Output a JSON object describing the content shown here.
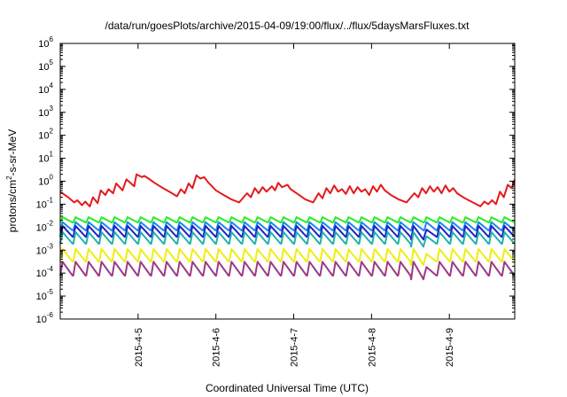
{
  "chart_data": {
    "type": "line",
    "title": "/data/run/goesPlots/archive/2015-04-09/19:00/flux/../flux/5daysMarsFluxes.txt",
    "xlabel": "Coordinated Universal Time (UTC)",
    "ylabel": "protons/cm²-s-sr-MeV",
    "ylabel_parts": [
      "protons/cm",
      "2",
      "-s-sr-MeV"
    ],
    "yscale": "log",
    "ylim_exp": [
      -6,
      6
    ],
    "xlim_days": [
      4.0,
      9.84
    ],
    "x_ticks": [
      {
        "label": "2015-4-5",
        "day": 5
      },
      {
        "label": "2015-4-6",
        "day": 6
      },
      {
        "label": "2015-4-7",
        "day": 7
      },
      {
        "label": "2015-4-8",
        "day": 8
      },
      {
        "label": "2015-4-9",
        "day": 9
      }
    ],
    "y_ticks": [
      {
        "base": "10",
        "exp": "-6"
      },
      {
        "base": "10",
        "exp": "-5"
      },
      {
        "base": "10",
        "exp": "-4"
      },
      {
        "base": "10",
        "exp": "-3"
      },
      {
        "base": "10",
        "exp": "-2"
      },
      {
        "base": "10",
        "exp": "-1"
      },
      {
        "base": "10",
        "exp": "0"
      },
      {
        "base": "10",
        "exp": "1"
      },
      {
        "base": "10",
        "exp": "2"
      },
      {
        "base": "10",
        "exp": "3"
      },
      {
        "base": "10",
        "exp": "4"
      },
      {
        "base": "10",
        "exp": "5"
      },
      {
        "base": "10",
        "exp": "6"
      }
    ],
    "grid": false,
    "legend": "none",
    "series": [
      {
        "color": "#e41a1c",
        "x": [
          4.0,
          4.1,
          4.18,
          4.22,
          4.28,
          4.32,
          4.38,
          4.42,
          4.48,
          4.52,
          4.58,
          4.62,
          4.68,
          4.72,
          4.8,
          4.85,
          4.95,
          4.98,
          5.05,
          5.08,
          5.15,
          5.2,
          5.3,
          5.4,
          5.5,
          5.55,
          5.6,
          5.65,
          5.7,
          5.75,
          5.8,
          5.85,
          5.9,
          5.95,
          6.0,
          6.1,
          6.2,
          6.3,
          6.4,
          6.45,
          6.5,
          6.55,
          6.6,
          6.65,
          6.72,
          6.76,
          6.8,
          6.85,
          6.92,
          6.96,
          7.05,
          7.15,
          7.25,
          7.32,
          7.37,
          7.42,
          7.47,
          7.52,
          7.57,
          7.62,
          7.67,
          7.72,
          7.77,
          7.82,
          7.87,
          7.92,
          7.97,
          8.02,
          8.07,
          8.12,
          8.17,
          8.25,
          8.35,
          8.45,
          8.55,
          8.6,
          8.65,
          8.7,
          8.75,
          8.8,
          8.85,
          8.9,
          8.95,
          9.0,
          9.05,
          9.1,
          9.2,
          9.3,
          9.4,
          9.45,
          9.5,
          9.55,
          9.6,
          9.65,
          9.7,
          9.75,
          9.8,
          9.84
        ],
        "y": [
          0.35,
          0.2,
          0.12,
          0.15,
          0.09,
          0.13,
          0.08,
          0.2,
          0.11,
          0.4,
          0.25,
          0.45,
          0.3,
          0.8,
          0.4,
          1.2,
          0.6,
          2.0,
          1.5,
          1.7,
          1.2,
          0.9,
          0.55,
          0.35,
          0.22,
          0.45,
          0.3,
          0.8,
          0.5,
          1.8,
          1.3,
          1.5,
          0.9,
          0.6,
          0.4,
          0.25,
          0.16,
          0.12,
          0.3,
          0.2,
          0.5,
          0.3,
          0.55,
          0.35,
          0.6,
          0.4,
          0.85,
          0.55,
          0.7,
          0.45,
          0.28,
          0.16,
          0.12,
          0.3,
          0.18,
          0.5,
          0.3,
          0.65,
          0.35,
          0.45,
          0.28,
          0.6,
          0.3,
          0.55,
          0.35,
          0.45,
          0.25,
          0.6,
          0.35,
          0.7,
          0.4,
          0.25,
          0.16,
          0.12,
          0.3,
          0.2,
          0.5,
          0.3,
          0.6,
          0.35,
          0.55,
          0.3,
          0.65,
          0.35,
          0.5,
          0.3,
          0.18,
          0.12,
          0.08,
          0.13,
          0.1,
          0.15,
          0.1,
          0.35,
          0.2,
          0.7,
          0.5,
          1.2
        ]
      },
      {
        "color": "#22ee22",
        "base": 0.016,
        "amp": 1.7,
        "dips": []
      },
      {
        "color": "#1e88e5",
        "base": 0.0072,
        "amp": 2.3,
        "dips": []
      },
      {
        "color": "#2020cc",
        "base": 0.0038,
        "amp": 3.0,
        "dips": [
          {
            "day": 7.75,
            "depth": 0.55
          },
          {
            "day": 8.72,
            "depth": 0.3
          }
        ]
      },
      {
        "color": "#20b2aa",
        "base": 0.0019,
        "amp": 3.2,
        "dips": [
          {
            "day": 7.75,
            "depth": 0.3
          },
          {
            "day": 8.72,
            "depth": 0.25
          }
        ]
      },
      {
        "color": "#eeee11",
        "base": 0.00032,
        "amp": 3.5,
        "dips": [
          {
            "day": 7.75,
            "depth": 0.3
          },
          {
            "day": 8.72,
            "depth": 0.12
          }
        ]
      },
      {
        "color": "#9b3a83",
        "base": 7.8e-05,
        "amp": 4.0,
        "dips": [
          {
            "day": 7.75,
            "depth": 0.25
          },
          {
            "day": 8.72,
            "depth": 0.08
          }
        ]
      }
    ]
  }
}
